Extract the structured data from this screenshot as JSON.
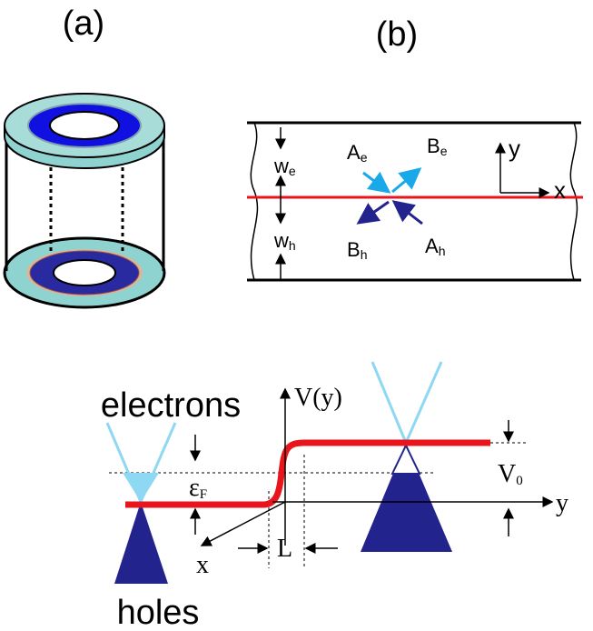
{
  "panels": {
    "a": "(a)",
    "b": "(b)"
  },
  "channel": {
    "axis_y": "y",
    "axis_x": "x",
    "w_e": {
      "text": "w",
      "sub": "e"
    },
    "w_h": {
      "text": "w",
      "sub": "h"
    },
    "A_e": {
      "text": "A",
      "sub": "e"
    },
    "B_e": {
      "text": "B",
      "sub": "e"
    },
    "B_h": {
      "text": "B",
      "sub": "h"
    },
    "A_h": {
      "text": "A",
      "sub": "h"
    }
  },
  "potential": {
    "electrons": "electrons",
    "holes": "holes",
    "axis_v": "V(y)",
    "fermi": {
      "text": "ε",
      "sub": "F"
    },
    "V0": {
      "text": "V",
      "sub": "0"
    },
    "axis_y": "y",
    "axis_x": "x",
    "width": "L"
  }
}
